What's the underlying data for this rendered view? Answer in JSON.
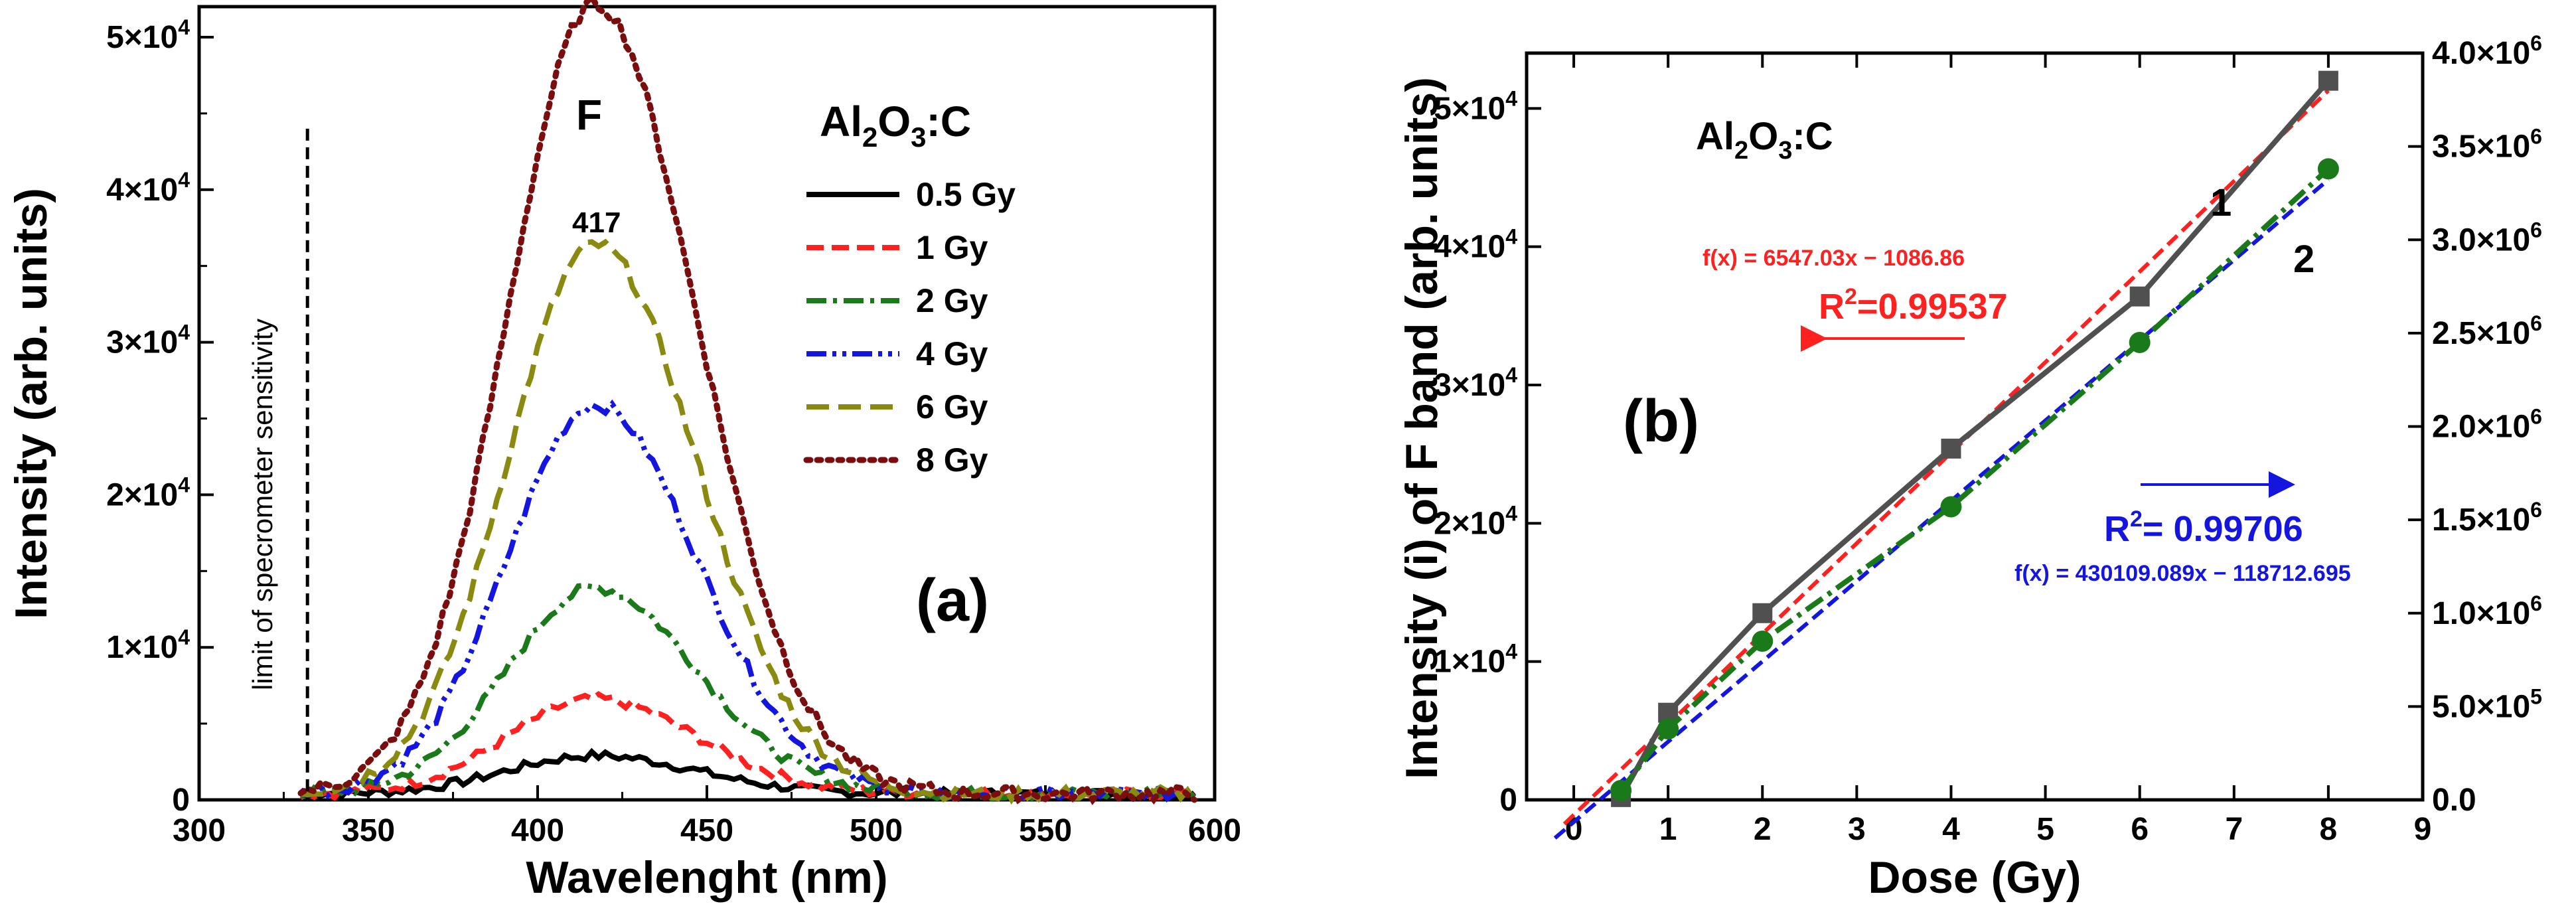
{
  "panel_a": {
    "label": "(a)",
    "compound": "Al",
    "compound_sub": "2",
    "compound_mid": "O",
    "compound_sub2": "3",
    "compound_end": ":C",
    "band_label": "F",
    "peak_label": "417",
    "limit_label": "limit of specrometer sensitivity"
  },
  "panel_b": {
    "label": "(b)",
    "compound": "Al",
    "compound_sub": "2",
    "compound_mid": "O",
    "compound_sub2": "3",
    "compound_end": ":C",
    "curve1_label": "1",
    "curve2_label": "2",
    "fit_red": "f(x) = 6547.03x − 1086.86",
    "r2_red_base": "R",
    "r2_red_sup": "2",
    "r2_red_val": "=0.99537",
    "fit_blue": "f(x) = 430109.089x − 118712.695",
    "r2_blue_base": "R",
    "r2_blue_sup": "2",
    "r2_blue_val": "= 0.99706"
  },
  "colors": {
    "black": "#000000",
    "red": "#ff2020",
    "green": "#1a7a1a",
    "blue": "#1515e0",
    "olive": "#8a8a10",
    "maroon": "#7a0d0d",
    "gray": "#505050"
  },
  "chart_data": [
    {
      "type": "line",
      "xlabel": "Wavelenght (nm)",
      "ylabel": "Intensity (arb. units)",
      "xlim": [
        300,
        600
      ],
      "ylim": [
        0,
        52000
      ],
      "xticks": [
        300,
        350,
        400,
        450,
        500,
        550,
        600
      ],
      "yticks": [
        {
          "v": 0,
          "base": "0",
          "exp": ""
        },
        {
          "v": 10000,
          "base": "1×10",
          "exp": "4"
        },
        {
          "v": 20000,
          "base": "2×10",
          "exp": "4"
        },
        {
          "v": 30000,
          "base": "3×10",
          "exp": "4"
        },
        {
          "v": 40000,
          "base": "4×10",
          "exp": "4"
        },
        {
          "v": 50000,
          "base": "5×10",
          "exp": "4"
        }
      ],
      "limit_x": 332,
      "peak": 417,
      "series": [
        {
          "name": "0.5 Gy",
          "color": "#000000",
          "amp": 2500,
          "dash": "solid"
        },
        {
          "name": "1 Gy",
          "color": "#ff2020",
          "amp": 6200,
          "dash": "dash"
        },
        {
          "name": "2 Gy",
          "color": "#1a7a1a",
          "amp": 13500,
          "dash": "dashdot"
        },
        {
          "name": "4 Gy",
          "color": "#1515e0",
          "amp": 25500,
          "dash": "dashdotdot"
        },
        {
          "name": "6 Gy",
          "color": "#8a8a10",
          "amp": 36000,
          "dash": "longdash"
        },
        {
          "name": "8 Gy",
          "color": "#7a0d0d",
          "amp": 51800,
          "dash": "dot"
        }
      ]
    },
    {
      "type": "line",
      "xlabel": "Dose (Gy)",
      "ylabel": "Intensity (i) of F band (arb. units)",
      "xlim": [
        -0.5,
        9
      ],
      "ylim": [
        0,
        54000
      ],
      "xticks": [
        0,
        1,
        2,
        3,
        4,
        5,
        6,
        7,
        8,
        9
      ],
      "yticks": [
        {
          "v": 0,
          "base": "0",
          "exp": ""
        },
        {
          "v": 10000,
          "base": "1×10",
          "exp": "4"
        },
        {
          "v": 20000,
          "base": "2×10",
          "exp": "4"
        },
        {
          "v": 30000,
          "base": "3×10",
          "exp": "4"
        },
        {
          "v": 40000,
          "base": "4×10",
          "exp": "4"
        },
        {
          "v": 50000,
          "base": "5×10",
          "exp": "4"
        }
      ],
      "y2lim": [
        0,
        4000000
      ],
      "y2ticks": [
        {
          "v": 0,
          "base": "0.0",
          "exp": ""
        },
        {
          "v": 500000,
          "base": "5.0×10",
          "exp": "5"
        },
        {
          "v": 1000000,
          "base": "1.0×10",
          "exp": "6"
        },
        {
          "v": 1500000,
          "base": "1.5×10",
          "exp": "6"
        },
        {
          "v": 2000000,
          "base": "2.0×10",
          "exp": "6"
        },
        {
          "v": 2500000,
          "base": "2.5×10",
          "exp": "6"
        },
        {
          "v": 3000000,
          "base": "3.0×10",
          "exp": "6"
        },
        {
          "v": 3500000,
          "base": "3.5×10",
          "exp": "6"
        },
        {
          "v": 4000000,
          "base": "4.0×10",
          "exp": "6"
        }
      ],
      "series": [
        {
          "name": "1",
          "axis": "left",
          "color": "#505050",
          "marker": "square",
          "x": [
            0.5,
            1,
            2,
            4,
            6,
            8
          ],
          "y": [
            200,
            6300,
            13500,
            25400,
            36400,
            52000
          ]
        },
        {
          "name": "2",
          "axis": "right",
          "color": "#1a7a1a",
          "marker": "circle",
          "x": [
            0.5,
            1,
            2,
            4,
            6,
            8
          ],
          "y": [
            50000,
            380000,
            850000,
            1570000,
            2450000,
            3380000
          ]
        }
      ],
      "fits": [
        {
          "axis": "left",
          "color": "#ff2020",
          "slope": 6547.03,
          "intercept": -1086.86,
          "x0": -0.1,
          "x1": 8
        },
        {
          "axis": "right",
          "color": "#1515e0",
          "slope": 430109.089,
          "intercept": -118712.695,
          "x0": -0.2,
          "x1": 8
        }
      ]
    }
  ]
}
